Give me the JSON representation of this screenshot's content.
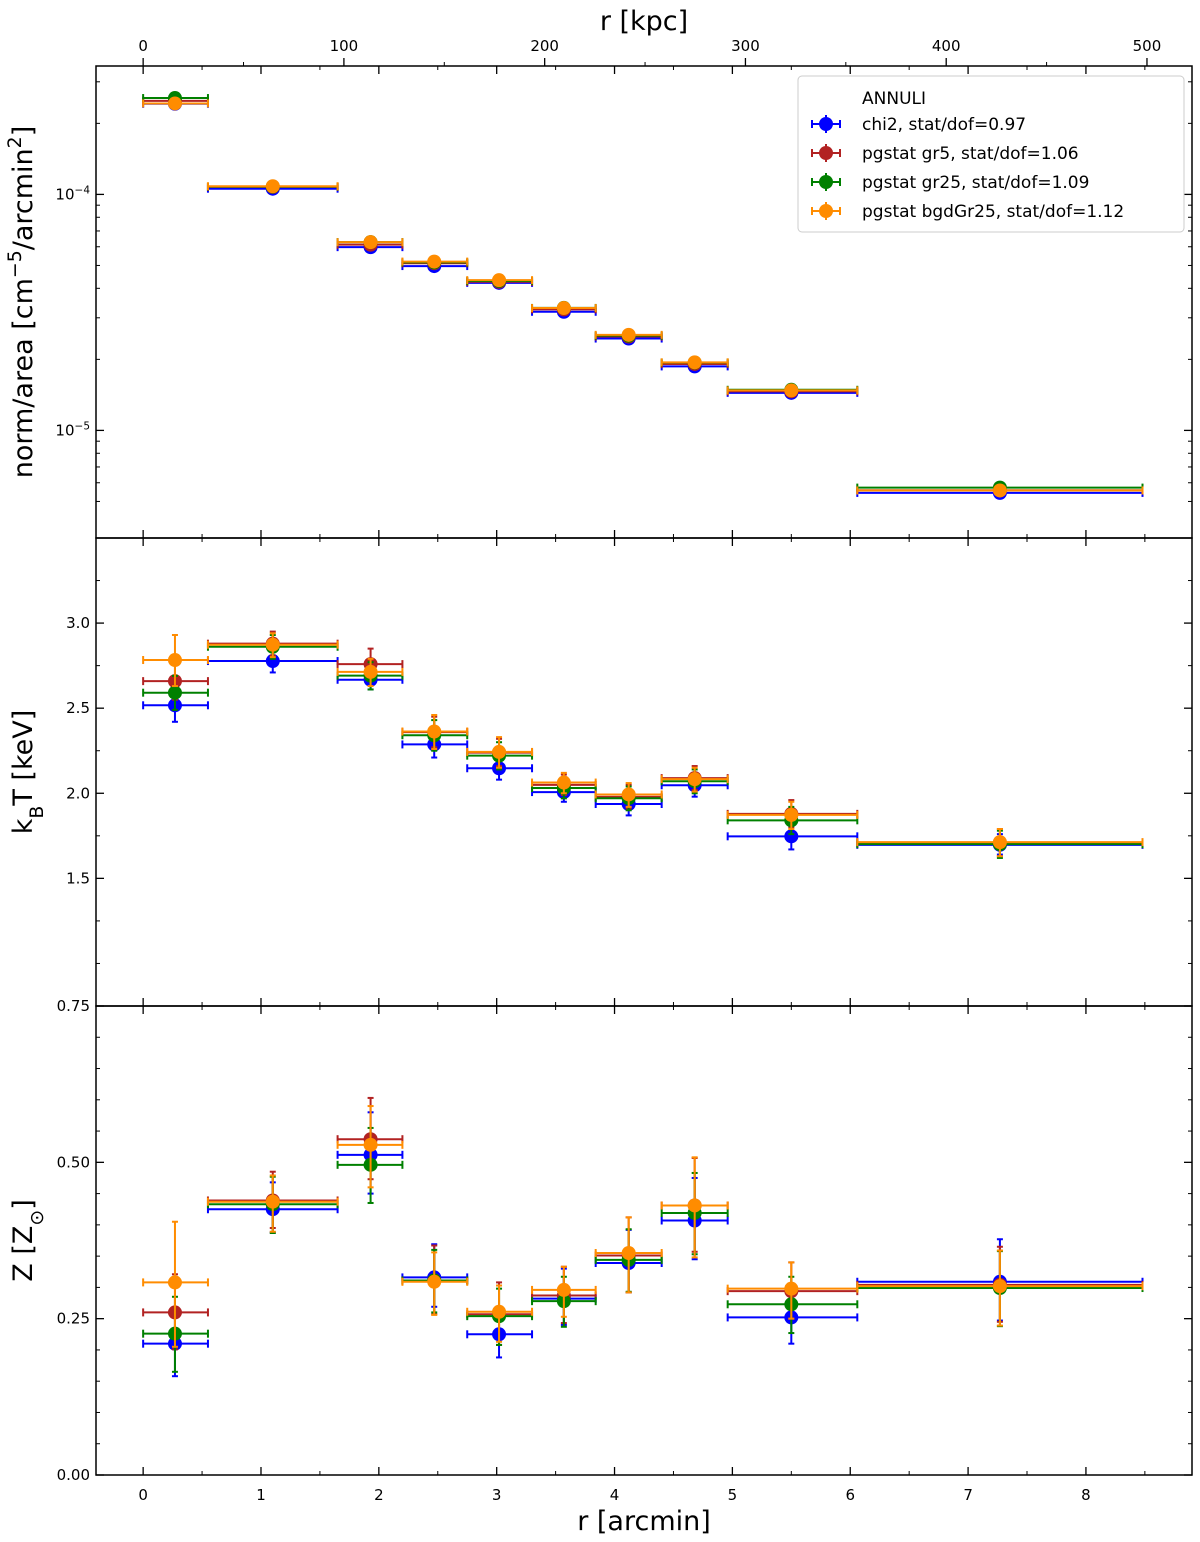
{
  "chart_data": {
    "type": "scatter",
    "description_axis_top": "r [kpc]",
    "top_axis": {
      "label": "r [kpc]",
      "ticks": [
        0,
        100,
        200,
        300,
        400,
        500
      ],
      "tick_labels": [
        "0",
        "100",
        "200",
        "300",
        "400",
        "500"
      ]
    },
    "x_axis": {
      "label": "r [arcmin]",
      "range": [
        -0.4,
        8.9
      ],
      "ticks": [
        0,
        1,
        2,
        3,
        4,
        5,
        6,
        7,
        8
      ],
      "tick_labels": [
        "0",
        "1",
        "2",
        "3",
        "4",
        "5",
        "6",
        "7",
        "8"
      ]
    },
    "bins": {
      "x": [
        0.27,
        1.1,
        1.93,
        2.47,
        3.02,
        3.57,
        4.12,
        4.68,
        5.5,
        7.27
      ],
      "x_lo": [
        0.0,
        0.55,
        1.65,
        2.2,
        2.75,
        3.3,
        3.84,
        4.4,
        4.96,
        6.06
      ],
      "x_hi": [
        0.55,
        1.65,
        2.2,
        2.75,
        3.3,
        3.84,
        4.4,
        4.96,
        6.06,
        8.48
      ]
    },
    "series": [
      {
        "name": "chi2",
        "legend_label": "chi2, stat/dof=0.97",
        "color": "#0000ff",
        "offset": -0.03
      },
      {
        "name": "pgstat gr5",
        "legend_label": "pgstat gr5, stat/dof=1.06",
        "color": "#b22222",
        "offset": -0.01
      },
      {
        "name": "pgstat gr25",
        "legend_label": "pgstat gr25, stat/dof=1.09",
        "color": "#008000",
        "offset": 0.01
      },
      {
        "name": "pgstat bgdGr25",
        "legend_label": "pgstat bgdGr25, stat/dof=1.12",
        "color": "#ff8c00",
        "offset": 0.03
      }
    ],
    "legend": {
      "title": "ANNULI",
      "position": "top-right"
    },
    "panels": [
      {
        "id": "norm",
        "ylabel_html": "norm/area [cm<tspan baseline-shift=\"super\" font-size=\"70%\">−5</tspan>/arcmin<tspan baseline-shift=\"super\" font-size=\"70%\">2</tspan>]",
        "yscale": "log",
        "ylim": [
          3.5e-06,
          0.00035
        ],
        "ticks": [
          1e-05,
          0.0001
        ],
        "tick_labels_html": [
          "10<tspan baseline-shift=\"super\" font-size=\"70%\">−5</tspan>",
          "10<tspan baseline-shift=\"super\" font-size=\"70%\">−4</tspan>"
        ],
        "minor_ticks": [
          5e-06,
          6e-06,
          7e-06,
          8e-06,
          9e-06,
          2e-05,
          3e-05,
          4e-05,
          5e-05,
          6e-05,
          7e-05,
          8e-05,
          9e-05,
          0.0002,
          0.0003
        ],
        "values": {
          "chi2": [
            0.000245,
            0.000107,
            6.05e-05,
            5.03e-05,
            4.27e-05,
            3.22e-05,
            2.48e-05,
            1.89e-05,
            1.46e-05,
            5.5e-06
          ],
          "pgstat gr5": [
            0.00025,
            0.000108,
            6.15e-05,
            5.13e-05,
            4.28e-05,
            3.27e-05,
            2.51e-05,
            1.92e-05,
            1.47e-05,
            5.6e-06
          ],
          "pgstat gr25": [
            0.000255,
            0.0001075,
            6.25e-05,
            5.13e-05,
            4.28e-05,
            3.29e-05,
            2.51e-05,
            1.93e-05,
            1.48e-05,
            5.7e-06
          ],
          "pgstat bgdGr25": [
            0.00024,
            0.000107,
            6.2e-05,
            5.13e-05,
            4.28e-05,
            3.26e-05,
            2.51e-05,
            1.92e-05,
            1.46e-05,
            5.5e-06
          ]
        },
        "yerr": {
          "chi2": [
            5e-06,
            2e-06,
            1e-06,
            8e-07,
            6e-07,
            5e-07,
            4e-07,
            4e-07,
            3e-07,
            2e-07
          ],
          "pgstat gr5": [
            5e-06,
            2e-06,
            1e-06,
            8e-07,
            6e-07,
            5e-07,
            4e-07,
            4e-07,
            3e-07,
            2e-07
          ],
          "pgstat gr25": [
            5e-06,
            2e-06,
            1e-06,
            8e-07,
            6e-07,
            5e-07,
            4e-07,
            4e-07,
            3e-07,
            2e-07
          ],
          "pgstat bgdGr25": [
            5e-06,
            2e-06,
            1e-06,
            8e-07,
            6e-07,
            5e-07,
            4e-07,
            4e-07,
            3e-07,
            2e-07
          ]
        }
      },
      {
        "id": "kt",
        "ylabel_html": "k<tspan baseline-shift=\"sub\" font-size=\"70%\">B</tspan>T [keV]",
        "yscale": "linear",
        "ylim": [
          0.75,
          3.5
        ],
        "ticks": [
          1.5,
          2.0,
          2.5,
          3.0
        ],
        "tick_labels": [
          "1.5",
          "2.0",
          "2.5",
          "3.0"
        ],
        "minor_ticks": [
          1.0,
          1.25,
          1.75,
          2.25,
          2.75,
          3.25
        ],
        "values": {
          "chi2": [
            2.52,
            2.78,
            2.67,
            2.29,
            2.15,
            2.01,
            1.94,
            2.05,
            1.75,
            1.7
          ],
          "pgstat gr5": [
            2.66,
            2.88,
            2.76,
            2.36,
            2.24,
            2.05,
            1.98,
            2.09,
            1.88,
            1.71
          ],
          "pgstat gr25": [
            2.59,
            2.86,
            2.69,
            2.34,
            2.22,
            2.03,
            1.97,
            2.07,
            1.84,
            1.7
          ],
          "pgstat bgdGr25": [
            2.78,
            2.87,
            2.71,
            2.36,
            2.24,
            2.06,
            1.99,
            2.08,
            1.87,
            1.71
          ]
        },
        "yerr": {
          "chi2": [
            0.1,
            0.07,
            0.06,
            0.08,
            0.07,
            0.06,
            0.07,
            0.07,
            0.08,
            0.06
          ],
          "pgstat gr5": [
            0.11,
            0.07,
            0.09,
            0.09,
            0.08,
            0.06,
            0.07,
            0.07,
            0.08,
            0.08
          ],
          "pgstat gr25": [
            0.1,
            0.07,
            0.08,
            0.09,
            0.08,
            0.06,
            0.07,
            0.07,
            0.08,
            0.08
          ],
          "pgstat bgdGr25": [
            0.15,
            0.07,
            0.08,
            0.1,
            0.09,
            0.06,
            0.07,
            0.07,
            0.08,
            0.08
          ]
        }
      },
      {
        "id": "z",
        "ylabel_html": "Z [Z<tspan baseline-shift=\"sub\" font-size=\"70%\">⊙</tspan>]",
        "yscale": "linear",
        "ylim": [
          0.0,
          0.75
        ],
        "ticks": [
          0.0,
          0.25,
          0.5,
          0.75
        ],
        "tick_labels": [
          "0.00",
          "0.25",
          "0.50",
          "0.75"
        ],
        "minor_ticks": [
          0.05,
          0.1,
          0.15,
          0.2,
          0.3,
          0.35,
          0.4,
          0.45,
          0.55,
          0.6,
          0.65,
          0.7
        ],
        "values": {
          "chi2": [
            0.213,
            0.428,
            0.515,
            0.319,
            0.228,
            0.285,
            0.342,
            0.41,
            0.255,
            0.312
          ],
          "pgstat gr5": [
            0.261,
            0.44,
            0.538,
            0.312,
            0.258,
            0.288,
            0.352,
            0.432,
            0.295,
            0.305
          ],
          "pgstat gr25": [
            0.225,
            0.432,
            0.495,
            0.31,
            0.253,
            0.277,
            0.343,
            0.418,
            0.272,
            0.298
          ],
          "pgstat bgdGr25": [
            0.305,
            0.434,
            0.525,
            0.306,
            0.258,
            0.293,
            0.352,
            0.428,
            0.295,
            0.299
          ]
        },
        "yerr": {
          "chi2": [
            0.055,
            0.04,
            0.065,
            0.05,
            0.04,
            0.045,
            0.05,
            0.065,
            0.045,
            0.065
          ],
          "pgstat gr5": [
            0.06,
            0.045,
            0.065,
            0.055,
            0.05,
            0.045,
            0.06,
            0.075,
            0.045,
            0.06
          ],
          "pgstat gr25": [
            0.06,
            0.045,
            0.06,
            0.05,
            0.045,
            0.04,
            0.05,
            0.065,
            0.045,
            0.06
          ],
          "pgstat bgdGr25": [
            0.1,
            0.045,
            0.065,
            0.05,
            0.045,
            0.04,
            0.06,
            0.08,
            0.045,
            0.06
          ]
        }
      }
    ]
  }
}
